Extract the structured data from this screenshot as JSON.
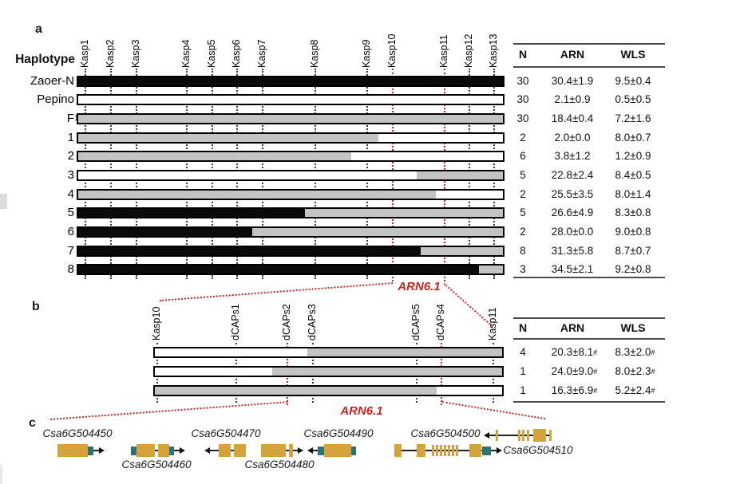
{
  "figure": {
    "panel_a": {
      "panel_label": "a",
      "row_header": "Haplotype",
      "markers": [
        "Kasp1",
        "Kasp2",
        "Kasp3",
        "Kasp4",
        "Kasp5",
        "Kasp6",
        "Kasp7",
        "Kasp8",
        "Kasp9",
        "Kasp10",
        "Kasp11",
        "Kasp12",
        "Kasp13"
      ],
      "highlight_markers": [
        "Kasp10",
        "Kasp11"
      ],
      "locus_label": "ARN6.1",
      "table_headers": [
        "N",
        "ARN",
        "WLS"
      ],
      "rows": [
        {
          "label": "Zaoer-N",
          "n": "30",
          "arn": "30.4±1.9",
          "wls": "9.5±0.4",
          "segments": [
            {
              "allele": "zaoer",
              "frac": 1
            }
          ]
        },
        {
          "label": "Pepino",
          "n": "30",
          "arn": "2.1±0.9",
          "wls": "0.5±0.5",
          "segments": [
            {
              "allele": "pepino",
              "frac": 1
            }
          ]
        },
        {
          "label": "F",
          "label_sub": "1",
          "n": "30",
          "arn": "18.4±0.4",
          "wls": "7.2±1.6",
          "segments": [
            {
              "allele": "het",
              "frac": 1
            }
          ]
        },
        {
          "label": "1",
          "n": "2",
          "arn": "2.0±0.0",
          "wls": "8.0±0.7",
          "segments": [
            {
              "allele": "het",
              "frac": 0.707
            },
            {
              "allele": "pepino",
              "frac": 0.293
            }
          ]
        },
        {
          "label": "2",
          "n": "6",
          "arn": "3.8±1.2",
          "wls": "1.2±0.9",
          "segments": [
            {
              "allele": "het",
              "frac": 0.642
            },
            {
              "allele": "pepino",
              "frac": 0.358
            }
          ]
        },
        {
          "label": "3",
          "n": "5",
          "arn": "22.8±2.4",
          "wls": "8.4±0.5",
          "segments": [
            {
              "allele": "pepino",
              "frac": 0.797
            },
            {
              "allele": "het",
              "frac": 0.203
            }
          ]
        },
        {
          "label": "4",
          "n": "2",
          "arn": "25.5±3.5",
          "wls": "8.0±1.4",
          "segments": [
            {
              "allele": "het",
              "frac": 0.843
            },
            {
              "allele": "pepino",
              "frac": 0.157
            }
          ]
        },
        {
          "label": "5",
          "n": "5",
          "arn": "26.6±4.9",
          "wls": "8.3±0.8",
          "segments": [
            {
              "allele": "zaoer",
              "frac": 0.534
            },
            {
              "allele": "het",
              "frac": 0.466
            }
          ]
        },
        {
          "label": "6",
          "n": "2",
          "arn": "28.0±0.0",
          "wls": "9.0±0.8",
          "segments": [
            {
              "allele": "zaoer",
              "frac": 0.409
            },
            {
              "allele": "het",
              "frac": 0.591
            }
          ]
        },
        {
          "label": "7",
          "n": "8",
          "arn": "31.3±5.8",
          "wls": "8.7±0.7",
          "segments": [
            {
              "allele": "zaoer",
              "frac": 0.806
            },
            {
              "allele": "het",
              "frac": 0.194
            }
          ]
        },
        {
          "label": "8",
          "n": "3",
          "arn": "34.5±2.1",
          "wls": "9.2±0.8",
          "segments": [
            {
              "allele": "zaoer",
              "frac": 0.944
            },
            {
              "allele": "het",
              "frac": 0.056
            }
          ]
        }
      ]
    },
    "panel_b": {
      "panel_label": "b",
      "markers": [
        "Kasp10",
        "dCAPs1",
        "dCAPs2",
        "dCAPs3",
        "dCAPs5",
        "dCAPs4",
        "Kasp11"
      ],
      "highlight_markers": [
        "dCAPs2",
        "dCAPs4"
      ],
      "locus_label": "ARN6.1",
      "table_headers": [
        "N",
        "ARN",
        "WLS"
      ],
      "rows": [
        {
          "n": "4",
          "arn": "20.3±8.1",
          "arn_sup": "#",
          "wls": "8.3±2.0",
          "wls_sup": "#",
          "segments": [
            {
              "allele": "pepino",
              "frac": 0.44
            },
            {
              "allele": "het",
              "frac": 0.56
            }
          ]
        },
        {
          "n": "1",
          "arn": "24.0±9.0",
          "arn_sup": "#",
          "wls": "8.0±2.3",
          "wls_sup": "#",
          "segments": [
            {
              "allele": "pepino",
              "frac": 0.337
            },
            {
              "allele": "het",
              "frac": 0.663
            }
          ]
        },
        {
          "n": "1",
          "arn": "16.3±6.9",
          "arn_sup": "#",
          "wls": "5.2±2.4",
          "wls_sup": "#",
          "segments": [
            {
              "allele": "het",
              "frac": 0.811
            },
            {
              "allele": "pepino",
              "frac": 0.189
            }
          ]
        }
      ]
    },
    "panel_c": {
      "panel_label": "c",
      "genes": [
        "Csa6G504450",
        "Csa6G504460",
        "Csa6G504470",
        "Csa6G504480",
        "Csa6G504490",
        "Csa6G504500",
        "Csa6G504510"
      ]
    },
    "legend_colors": {
      "zaoer_allele": "#0a0a0a",
      "pepino_allele": "#ffffff",
      "heterozygous_allele": "#c3c3c3",
      "highlight_red": "#cc2222",
      "exon_orange": "#d6a23c",
      "utr_teal": "#2e7372"
    }
  }
}
